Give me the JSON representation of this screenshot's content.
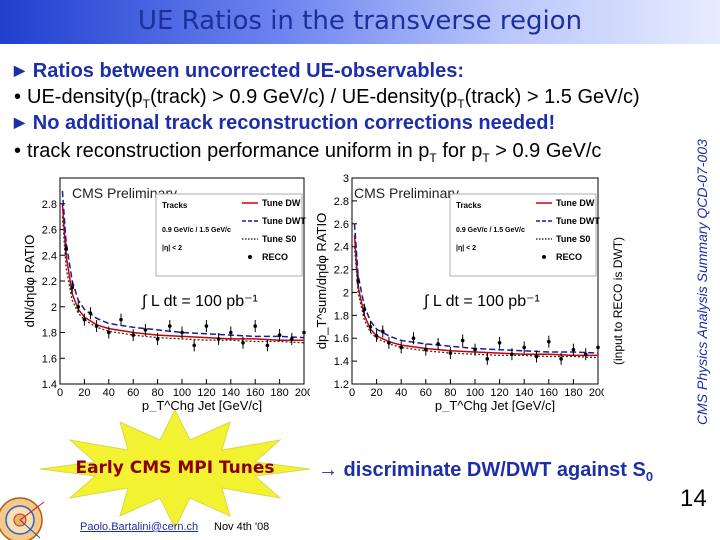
{
  "slide": {
    "title": "UE Ratios in the transverse region",
    "bullets": [
      {
        "style": "triangle",
        "text": "Ratios between uncorrected UE-observables:"
      },
      {
        "style": "dot",
        "pre": "UE-density(p",
        "sub1": "T",
        "mid": "(track) > 0.9 GeV/c) / UE-density(p",
        "sub2": "T",
        "post": "(track) > 1.5 GeV/c)"
      },
      {
        "style": "triangle",
        "text": "No additional track reconstruction corrections needed!"
      },
      {
        "style": "dot",
        "pre": "track reconstruction performance uniform in p",
        "sub1": "T",
        "mid": " for p",
        "sub2": "T",
        "post": " > 0.9 GeV/c"
      }
    ],
    "side_note": "(input to RECO is DWT)",
    "side_reference": "CMS Physics Analysis Summary QCD-07-003",
    "mpi_label": "Early CMS MPI Tunes",
    "conclusion_pre": "→ discriminate DW/DWT against S",
    "conclusion_sub": "0",
    "footer_email": "Paolo.Bartalini@cern.ch",
    "footer_date": "Nov 4th '08",
    "page_number": "14"
  },
  "colors": {
    "accent": "#1d2fa8",
    "mpi": "#8b0000",
    "burst": "#f2f230"
  },
  "chart_data": [
    {
      "type": "line",
      "title": "CMS Preliminary",
      "ylabel": "dN/dηdφ RATIO",
      "xlabel": "p_T^Chg Jet [GeV/c]",
      "xlim": [
        0,
        200
      ],
      "ylim": [
        1.4,
        3.0
      ],
      "xticks": [
        "0",
        "20",
        "40",
        "60",
        "80",
        "100",
        "120",
        "140",
        "160",
        "180",
        "200"
      ],
      "yticks": [
        "1.4",
        "1.6",
        "1.8",
        "2",
        "2.2",
        "2.4",
        "2.6",
        "2.8"
      ],
      "annotation": "∫ L dt = 100 pb⁻¹",
      "legend": {
        "title": "Tracks",
        "cut1": "0.9 GeV/c / 1.5 GeV/c",
        "cut2": "|η| < 2",
        "entries": [
          {
            "name": "Tune DW",
            "color": "#cc0000",
            "style": "solid"
          },
          {
            "name": "Tune DWT",
            "color": "#1a1aa0",
            "style": "dashed"
          },
          {
            "name": "Tune S0",
            "color": "#333333",
            "style": "dotted"
          },
          {
            "name": "RECO",
            "color": "#000000",
            "style": "points"
          }
        ]
      },
      "series": [
        {
          "name": "Tune DW",
          "x": [
            2,
            5,
            10,
            15,
            20,
            30,
            40,
            60,
            80,
            100,
            120,
            140,
            160,
            180,
            200
          ],
          "values": [
            2.8,
            2.4,
            2.1,
            1.98,
            1.92,
            1.86,
            1.83,
            1.8,
            1.78,
            1.77,
            1.76,
            1.75,
            1.75,
            1.74,
            1.74
          ]
        },
        {
          "name": "Tune DWT",
          "x": [
            2,
            5,
            10,
            15,
            20,
            30,
            40,
            60,
            80,
            100,
            120,
            140,
            160,
            180,
            200
          ],
          "values": [
            2.9,
            2.5,
            2.2,
            2.05,
            1.98,
            1.91,
            1.87,
            1.84,
            1.82,
            1.8,
            1.79,
            1.78,
            1.77,
            1.77,
            1.76
          ]
        },
        {
          "name": "Tune S0",
          "x": [
            2,
            5,
            10,
            15,
            20,
            30,
            40,
            60,
            80,
            100,
            120,
            140,
            160,
            180,
            200
          ],
          "values": [
            2.7,
            2.3,
            2.05,
            1.95,
            1.9,
            1.84,
            1.81,
            1.78,
            1.76,
            1.75,
            1.74,
            1.74,
            1.73,
            1.73,
            1.72
          ]
        },
        {
          "name": "RECO",
          "x": [
            5,
            10,
            15,
            20,
            25,
            30,
            40,
            50,
            60,
            70,
            80,
            90,
            100,
            110,
            120,
            130,
            140,
            150,
            160,
            170,
            180,
            190,
            200
          ],
          "values": [
            2.45,
            2.15,
            2.0,
            1.9,
            1.95,
            1.85,
            1.8,
            1.9,
            1.78,
            1.82,
            1.75,
            1.85,
            1.8,
            1.7,
            1.85,
            1.75,
            1.8,
            1.72,
            1.85,
            1.7,
            1.78,
            1.75,
            1.8
          ]
        }
      ]
    },
    {
      "type": "line",
      "title": "CMS Preliminary",
      "ylabel": "dp_T^sum/dηdφ RATIO",
      "xlabel": "p_T^Chg Jet [GeV/c]",
      "xlim": [
        0,
        200
      ],
      "ylim": [
        1.2,
        3.0
      ],
      "xticks": [
        "0",
        "20",
        "40",
        "60",
        "80",
        "100",
        "120",
        "140",
        "160",
        "180",
        "200"
      ],
      "yticks": [
        "1.2",
        "1.4",
        "1.6",
        "1.8",
        "2",
        "2.2",
        "2.4",
        "2.6",
        "2.8",
        "3"
      ],
      "annotation": "∫ L dt = 100 pb⁻¹",
      "legend": {
        "title": "Tracks",
        "cut1": "0.9 GeV/c / 1.5 GeV/c",
        "cut2": "|η| < 2",
        "entries": [
          {
            "name": "Tune DW",
            "color": "#cc0000",
            "style": "solid"
          },
          {
            "name": "Tune DWT",
            "color": "#1a1aa0",
            "style": "dashed"
          },
          {
            "name": "Tune S0",
            "color": "#333333",
            "style": "dotted"
          },
          {
            "name": "RECO",
            "color": "#000000",
            "style": "points"
          }
        ]
      },
      "series": [
        {
          "name": "Tune DW",
          "x": [
            2,
            5,
            10,
            15,
            20,
            30,
            40,
            60,
            80,
            100,
            120,
            140,
            160,
            180,
            200
          ],
          "values": [
            2.5,
            2.05,
            1.8,
            1.68,
            1.62,
            1.57,
            1.54,
            1.51,
            1.49,
            1.48,
            1.47,
            1.46,
            1.46,
            1.45,
            1.45
          ]
        },
        {
          "name": "Tune DWT",
          "x": [
            2,
            5,
            10,
            15,
            20,
            30,
            40,
            60,
            80,
            100,
            120,
            140,
            160,
            180,
            200
          ],
          "values": [
            2.6,
            2.15,
            1.88,
            1.75,
            1.68,
            1.62,
            1.58,
            1.55,
            1.53,
            1.51,
            1.5,
            1.49,
            1.48,
            1.48,
            1.47
          ]
        },
        {
          "name": "Tune S0",
          "x": [
            2,
            5,
            10,
            15,
            20,
            30,
            40,
            60,
            80,
            100,
            120,
            140,
            160,
            180,
            200
          ],
          "values": [
            2.4,
            2.0,
            1.76,
            1.65,
            1.6,
            1.55,
            1.52,
            1.49,
            1.47,
            1.46,
            1.45,
            1.45,
            1.44,
            1.44,
            1.43
          ]
        },
        {
          "name": "RECO",
          "x": [
            5,
            10,
            15,
            20,
            25,
            30,
            40,
            50,
            60,
            70,
            80,
            90,
            100,
            110,
            120,
            130,
            140,
            150,
            160,
            170,
            180,
            190,
            200
          ],
          "values": [
            2.1,
            1.85,
            1.7,
            1.62,
            1.66,
            1.56,
            1.52,
            1.6,
            1.5,
            1.55,
            1.47,
            1.58,
            1.5,
            1.42,
            1.56,
            1.46,
            1.52,
            1.44,
            1.57,
            1.42,
            1.5,
            1.46,
            1.52
          ]
        }
      ]
    }
  ]
}
